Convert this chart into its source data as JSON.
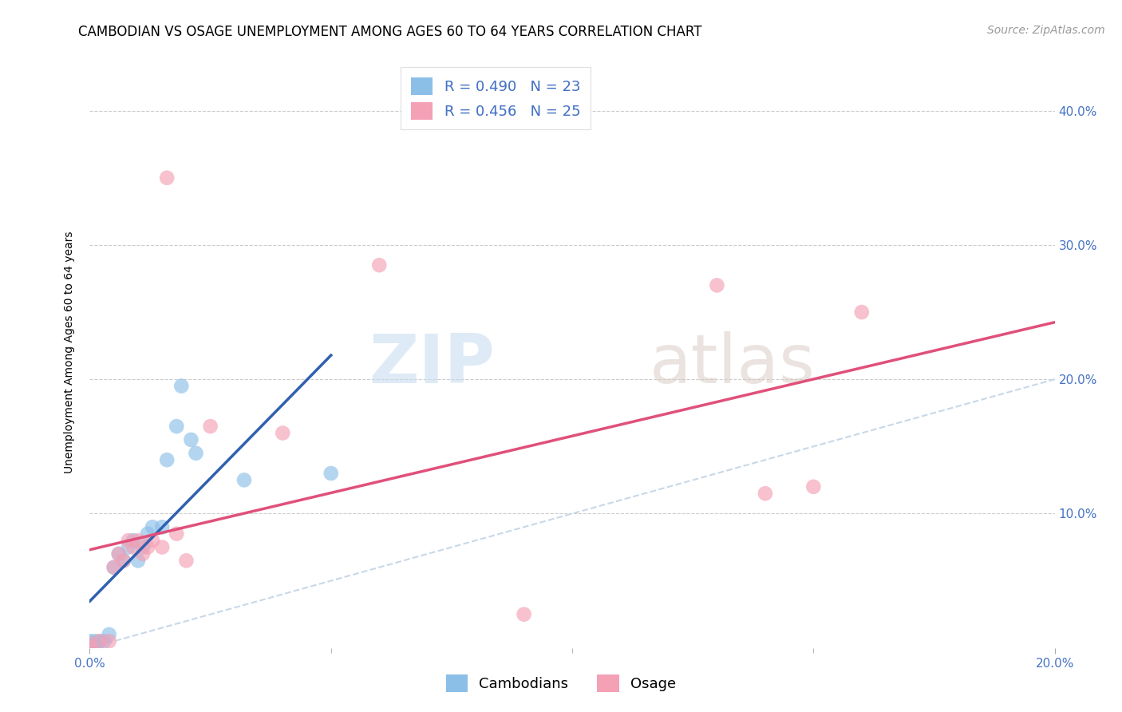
{
  "title": "CAMBODIAN VS OSAGE UNEMPLOYMENT AMONG AGES 60 TO 64 YEARS CORRELATION CHART",
  "source": "Source: ZipAtlas.com",
  "ylabel": "Unemployment Among Ages 60 to 64 years",
  "xlim": [
    0.0,
    0.2
  ],
  "ylim": [
    0.0,
    0.44
  ],
  "xticks": [
    0.0,
    0.2
  ],
  "xtick_minor": [
    0.05,
    0.1,
    0.15
  ],
  "yticks": [
    0.1,
    0.2,
    0.3,
    0.4
  ],
  "background_color": "#ffffff",
  "cambodian_color": "#8bbfe8",
  "osage_color": "#f4a0b5",
  "cambodian_line_color": "#3060b0",
  "osage_line_color": "#e0507a",
  "diagonal_color": "#c8d8e8",
  "R_cambodian": 0.49,
  "N_cambodian": 23,
  "R_osage": 0.456,
  "N_osage": 25,
  "watermark_zip": "ZIP",
  "watermark_atlas": "atlas",
  "cambodian_x": [
    0.0,
    0.0,
    0.001,
    0.002,
    0.003,
    0.004,
    0.005,
    0.006,
    0.007,
    0.008,
    0.009,
    0.01,
    0.011,
    0.012,
    0.013,
    0.015,
    0.016,
    0.018,
    0.019,
    0.021,
    0.022,
    0.032,
    0.05
  ],
  "cambodian_y": [
    0.0,
    0.005,
    0.005,
    0.005,
    0.005,
    0.01,
    0.06,
    0.07,
    0.065,
    0.075,
    0.08,
    0.065,
    0.075,
    0.085,
    0.09,
    0.09,
    0.14,
    0.165,
    0.195,
    0.155,
    0.145,
    0.125,
    0.13
  ],
  "osage_x": [
    0.0,
    0.0,
    0.002,
    0.004,
    0.005,
    0.006,
    0.007,
    0.008,
    0.009,
    0.01,
    0.011,
    0.012,
    0.013,
    0.015,
    0.016,
    0.018,
    0.02,
    0.025,
    0.04,
    0.06,
    0.09,
    0.13,
    0.14,
    0.15,
    0.16
  ],
  "osage_y": [
    0.0,
    0.003,
    0.005,
    0.005,
    0.06,
    0.07,
    0.065,
    0.08,
    0.075,
    0.08,
    0.07,
    0.075,
    0.08,
    0.075,
    0.35,
    0.085,
    0.065,
    0.165,
    0.16,
    0.285,
    0.025,
    0.27,
    0.115,
    0.12,
    0.25
  ],
  "legend_cambodians": "Cambodians",
  "legend_osage": "Osage",
  "title_fontsize": 12,
  "axis_label_fontsize": 10,
  "tick_fontsize": 11,
  "legend_fontsize": 13,
  "source_fontsize": 10
}
